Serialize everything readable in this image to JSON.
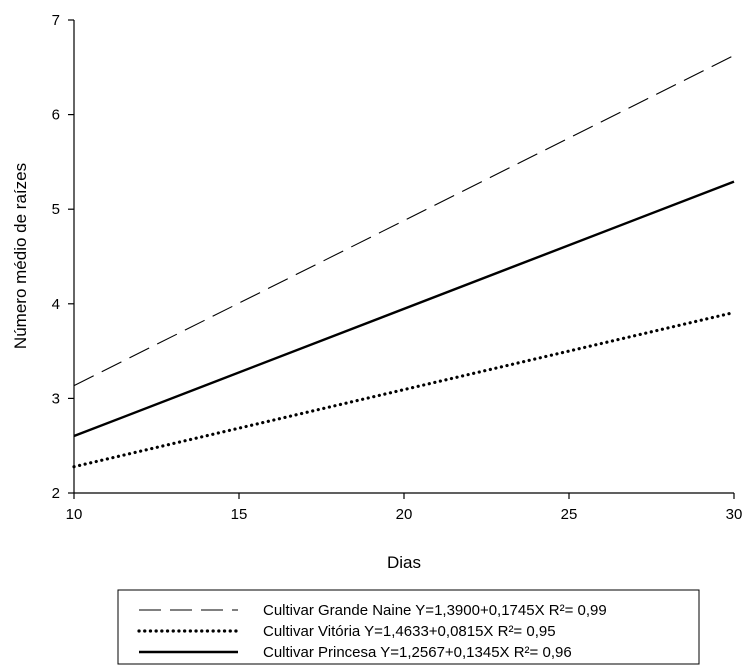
{
  "chart_data": {
    "type": "line",
    "title": "",
    "xlabel": "Dias",
    "ylabel": "Número médio de raízes",
    "xlim": [
      10,
      30
    ],
    "ylim": [
      2,
      7
    ],
    "xticks": [
      10,
      15,
      20,
      25,
      30
    ],
    "yticks": [
      2,
      3,
      4,
      5,
      6,
      7
    ],
    "grid": false,
    "legend_position": "bottom",
    "series": [
      {
        "name": "Cultivar Grande Naine",
        "equation": "Y=1,3900+0,1745X R²= 0,99",
        "intercept": 1.39,
        "slope": 0.1745,
        "line_style": "dashed",
        "x": [
          10,
          30
        ],
        "y": [
          3.135,
          6.625
        ]
      },
      {
        "name": "Cultivar Vitória",
        "equation": "Y=1,4633+0,0815X R²= 0,95",
        "intercept": 1.4633,
        "slope": 0.0815,
        "line_style": "dotted",
        "x": [
          10,
          30
        ],
        "y": [
          2.278,
          3.908
        ]
      },
      {
        "name": "Cultivar Princesa",
        "equation": "Y=1,2567+0,1345X R²= 0,96",
        "intercept": 1.2567,
        "slope": 0.1345,
        "line_style": "solid",
        "x": [
          10,
          30
        ],
        "y": [
          2.602,
          5.292
        ]
      }
    ]
  }
}
